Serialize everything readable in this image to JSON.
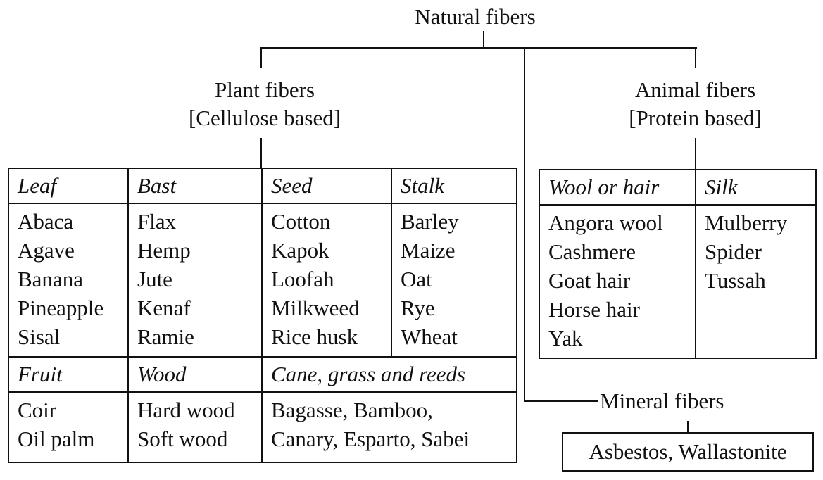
{
  "root": "Natural fibers",
  "plant": {
    "title": "Plant fibers",
    "subtitle": "[Cellulose based]",
    "row1": [
      {
        "header": "Leaf",
        "items": [
          "Abaca",
          "Agave",
          "Banana",
          "Pineapple",
          "Sisal"
        ]
      },
      {
        "header": "Bast",
        "items": [
          "Flax",
          "Hemp",
          "Jute",
          "Kenaf",
          "Ramie"
        ]
      },
      {
        "header": "Seed",
        "items": [
          "Cotton",
          "Kapok",
          "Loofah",
          "Milkweed",
          "Rice husk"
        ]
      },
      {
        "header": "Stalk",
        "items": [
          "Barley",
          "Maize",
          "Oat",
          "Rye",
          "Wheat"
        ]
      }
    ],
    "row2": [
      {
        "header": "Fruit",
        "items": [
          "Coir",
          "Oil palm"
        ]
      },
      {
        "header": "Wood",
        "items": [
          "Hard wood",
          "Soft wood"
        ]
      },
      {
        "header": "Cane, grass and reeds",
        "items": [
          "Bagasse, Bamboo,",
          "Canary, Esparto, Sabei"
        ]
      }
    ]
  },
  "animal": {
    "title": "Animal fibers",
    "subtitle": "[Protein based]",
    "columns": [
      {
        "header": "Wool or hair",
        "items": [
          "Angora wool",
          "Cashmere",
          "Goat hair",
          "Horse hair",
          "Yak"
        ]
      },
      {
        "header": "Silk",
        "items": [
          "Mulberry",
          "Spider",
          "Tussah"
        ]
      }
    ]
  },
  "mineral": {
    "title": "Mineral fibers",
    "items": "Asbestos, Wallastonite"
  }
}
